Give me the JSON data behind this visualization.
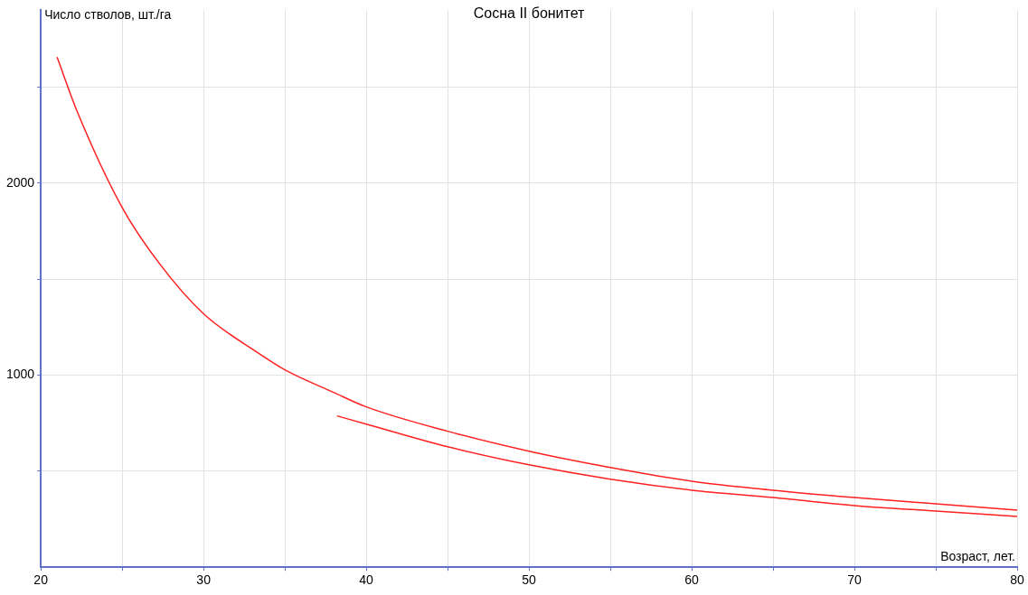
{
  "chart_data": {
    "type": "line",
    "title": "Сосна II бонитет",
    "xlabel": "Возраст, лет.",
    "ylabel": "Число стволов, шт./га",
    "xlim": [
      20,
      80
    ],
    "ylim": [
      0,
      2900
    ],
    "xticks": [
      20,
      {
        "value": 25,
        "label": null
      },
      30,
      {
        "value": 35,
        "label": null
      },
      40,
      {
        "value": 45,
        "label": null
      },
      50,
      {
        "value": 55,
        "label": null
      },
      60,
      {
        "value": 65,
        "label": null
      },
      70,
      {
        "value": 75,
        "label": null
      },
      80
    ],
    "yticks": [
      {
        "value": 500,
        "label": null
      },
      1000,
      {
        "value": 1500,
        "label": null
      },
      2000,
      {
        "value": 2500,
        "label": null
      }
    ],
    "grid": true,
    "legend": false,
    "marker": "none",
    "line_style": "solid",
    "series": [
      {
        "color": "#ff2020",
        "x": [
          21,
          22.2,
          25,
          27.3,
          30,
          33.5,
          35,
          38,
          40,
          45,
          50,
          55,
          60,
          65,
          70,
          75,
          80
        ],
        "values": [
          2656,
          2380,
          1873,
          1580,
          1320,
          1108,
          1028,
          910,
          835,
          708,
          604,
          519,
          448,
          401,
          363,
          330,
          297
        ]
      },
      {
        "color": "#ff2020",
        "x": [
          38.2,
          40,
          45,
          50,
          55,
          60,
          65,
          70,
          75,
          80
        ],
        "values": [
          788,
          745,
          627,
          533,
          458,
          401,
          363,
          321,
          292,
          264
        ]
      }
    ]
  }
}
